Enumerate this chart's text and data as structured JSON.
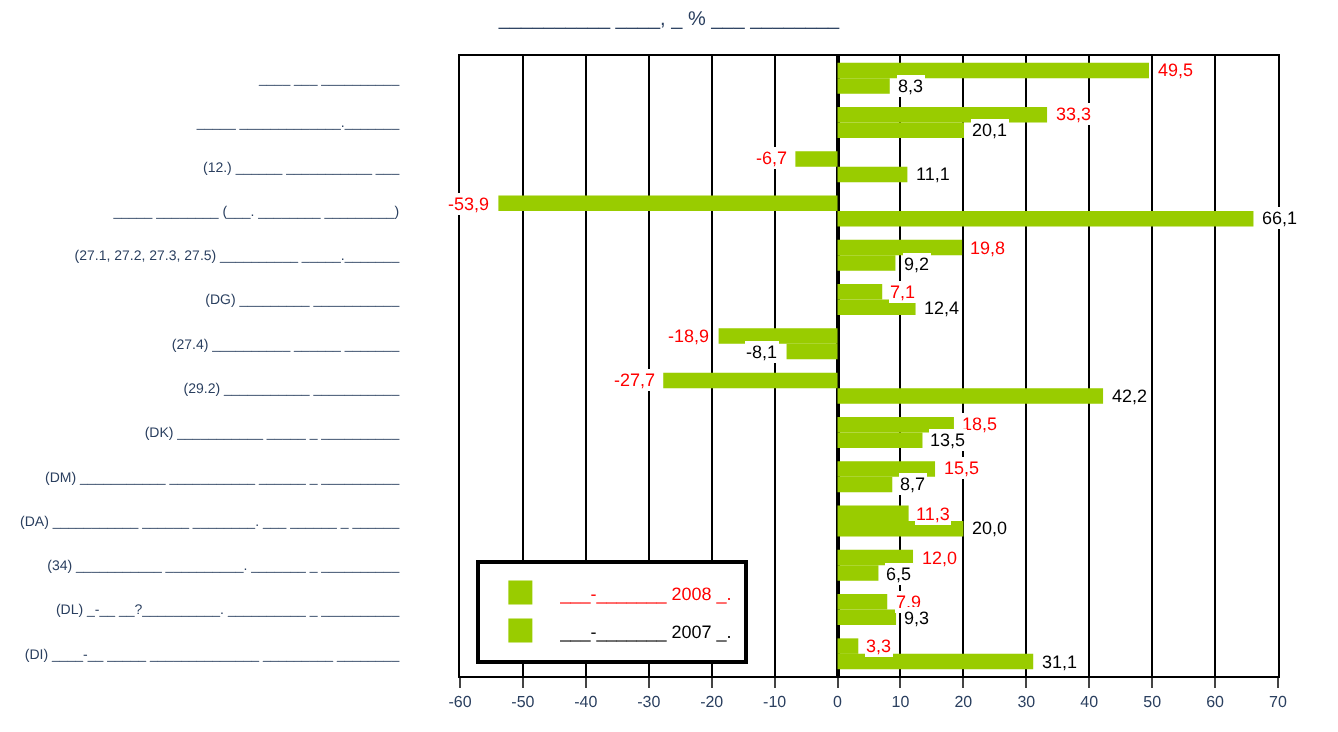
{
  "chart_data": {
    "type": "bar",
    "orientation": "horizontal",
    "title": "__________ ____, _ % ___ ________",
    "categories": [
      "____ ___ __________",
      "_____ _____________._______",
      "(12.) ______ ___________ ___",
      "_____ ________ (___. ________ _________)",
      "(27.1, 27.2, 27.3, 27.5) __________ _____._______",
      "(DG) _________ ___________",
      "(27.4) __________ ______ _______",
      "(29.2) ___________ ___________",
      "(DK) ___________ _____ _ __________",
      "(DM) ___________ ___________ ______ _ __________",
      "(DA) ___________ ______ ________. ___ ______ _ ______",
      "(34) ___________ __________. _______ _ __________",
      "(DL) _-__ __?__________. __________ _ __________",
      "(DI) ____-__ _____ ______________ _________ ________"
    ],
    "series": [
      {
        "name": "___-_______ 2008 _.",
        "color": "#99cc00",
        "values": [
          49.5,
          33.3,
          -6.7,
          -53.9,
          19.8,
          7.1,
          -18.9,
          -27.7,
          18.5,
          15.5,
          11.3,
          12.0,
          7.9,
          3.3
        ],
        "value_labels": [
          "49,5",
          "33,3",
          "-6,7",
          "-53,9",
          "19,8",
          "7,1",
          "-18,9",
          "-27,7",
          "18,5",
          "15,5",
          "11,3",
          "12,0",
          "7,9",
          "3,3"
        ]
      },
      {
        "name": "___-_______ 2007 _.",
        "color": "#99cc00",
        "values": [
          8.3,
          20.1,
          11.1,
          66.1,
          9.2,
          12.4,
          -8.1,
          42.2,
          13.5,
          8.7,
          20.0,
          6.5,
          9.3,
          31.1
        ],
        "value_labels": [
          "8,3",
          "20,1",
          "11,1",
          "66,1",
          "9,2",
          "12,4",
          "-8,1",
          "42,2",
          "13,5",
          "8,7",
          "20,0",
          "6,5",
          "9,3",
          "31,1"
        ]
      }
    ],
    "xlim": [
      -60,
      70
    ],
    "xticks": [
      -60,
      -50,
      -40,
      -30,
      -20,
      -10,
      0,
      10,
      20,
      30,
      40,
      50,
      60,
      70
    ],
    "grid": "x",
    "legend": "bottom left"
  }
}
